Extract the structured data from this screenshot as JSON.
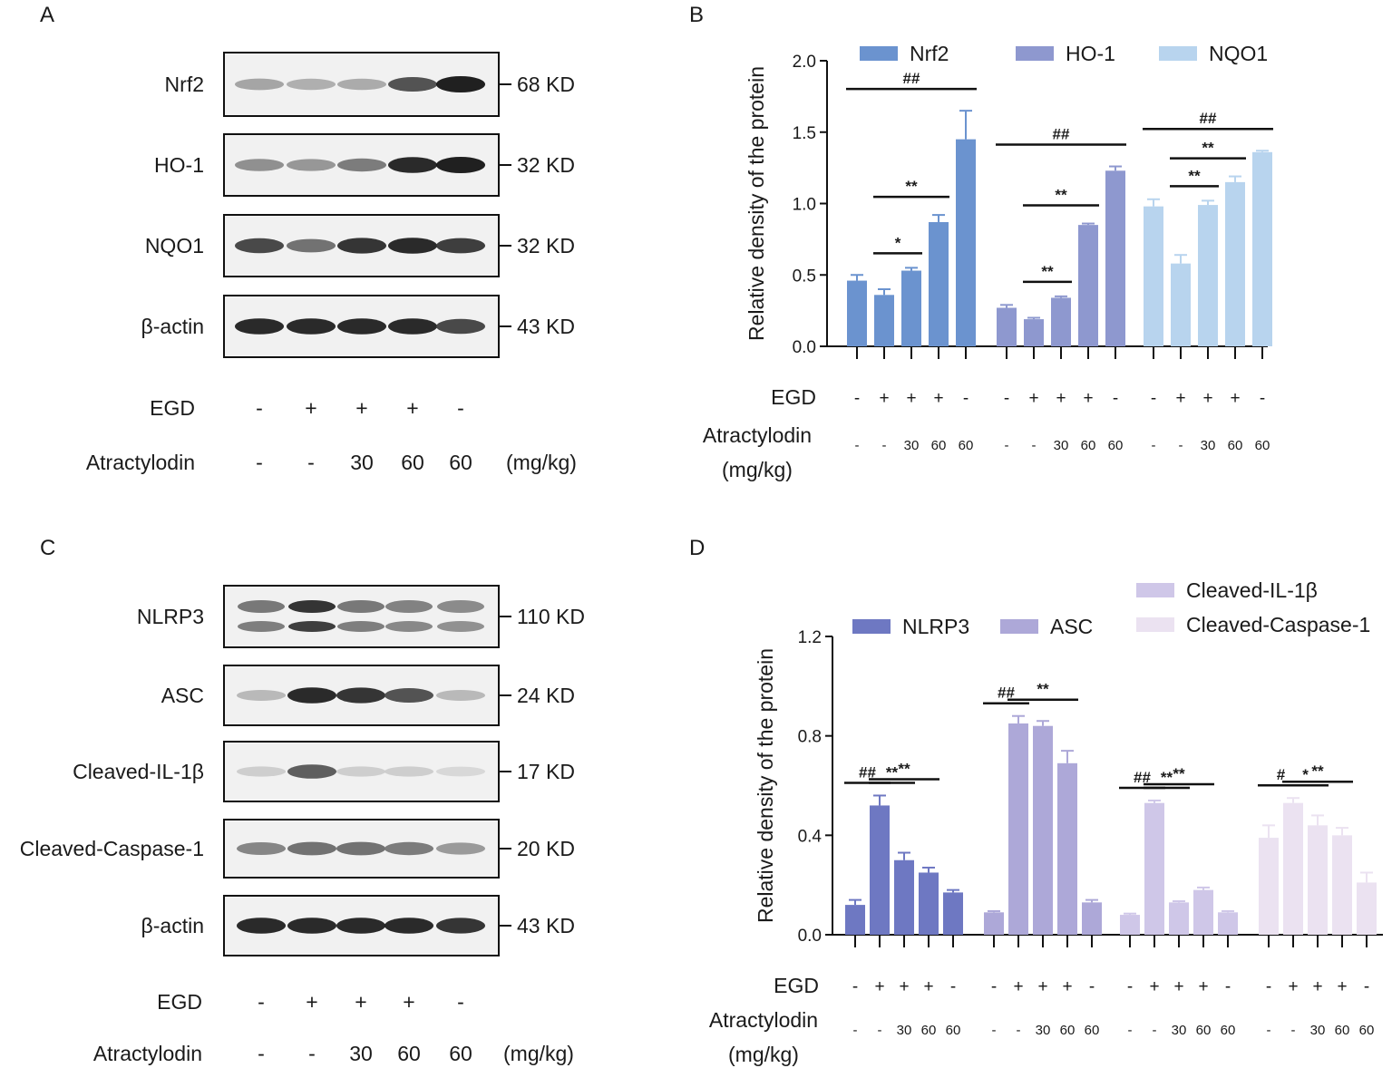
{
  "panels": {
    "a": "A",
    "b": "B",
    "c": "C",
    "d": "D"
  },
  "blot_a": {
    "proteins": [
      {
        "name": "Nrf2",
        "size": "68 KD",
        "intensities": [
          0.35,
          0.3,
          0.32,
          0.75,
          1.0
        ],
        "doublet": false
      },
      {
        "name": "HO-1",
        "size": "32 KD",
        "intensities": [
          0.45,
          0.42,
          0.55,
          0.95,
          1.0
        ],
        "doublet": false
      },
      {
        "name": "NQO1",
        "size": "32 KD",
        "intensities": [
          0.8,
          0.6,
          0.9,
          0.95,
          0.85
        ],
        "doublet": false
      },
      {
        "name": "β-actin",
        "size": "43 KD",
        "intensities": [
          0.95,
          0.95,
          0.95,
          0.95,
          0.8
        ],
        "doublet": false
      }
    ],
    "egd_label": "EGD",
    "egd": [
      "-",
      "+",
      "+",
      "+",
      "-"
    ],
    "drug_label": "Atractylodin",
    "drug": [
      "-",
      "-",
      "30",
      "60",
      "60"
    ],
    "unit": "(mg/kg)"
  },
  "blot_c": {
    "proteins": [
      {
        "name": "NLRP3",
        "size": "110 KD",
        "intensities": [
          0.6,
          0.95,
          0.6,
          0.55,
          0.5
        ],
        "doublet": true
      },
      {
        "name": "ASC",
        "size": "24 KD",
        "intensities": [
          0.25,
          0.95,
          0.9,
          0.75,
          0.25
        ],
        "doublet": false
      },
      {
        "name": "Cleaved-IL-1β",
        "size": "17 KD",
        "intensities": [
          0.15,
          0.7,
          0.15,
          0.15,
          0.1
        ],
        "doublet": false
      },
      {
        "name": "Cleaved-Caspase-1",
        "size": "20 KD",
        "intensities": [
          0.5,
          0.6,
          0.6,
          0.55,
          0.4
        ],
        "doublet": false
      },
      {
        "name": "β-actin",
        "size": "43 KD",
        "intensities": [
          0.95,
          0.95,
          0.95,
          0.95,
          0.9
        ],
        "doublet": false
      }
    ],
    "egd_label": "EGD",
    "egd": [
      "-",
      "+",
      "+",
      "+",
      "-"
    ],
    "drug_label": "Atractylodin",
    "drug": [
      "-",
      "-",
      "30",
      "60",
      "60"
    ],
    "unit": "(mg/kg)"
  },
  "chart_data": [
    {
      "type": "bar",
      "panel": "B",
      "ylabel": "Relative density of the protein",
      "ylim": [
        0,
        2.0
      ],
      "yticks": [
        "0.0",
        "0.5",
        "1.0",
        "1.5",
        "2.0"
      ],
      "egd_label": "EGD",
      "drug_label": "Atractylodin",
      "unit_label": "(mg/kg)",
      "egd": [
        "-",
        "+",
        "+",
        "+",
        "-"
      ],
      "drug": [
        "-",
        "-",
        "30",
        "60",
        "60"
      ],
      "series": [
        {
          "name": "Nrf2",
          "color": "#6b93cf",
          "values": [
            0.46,
            0.36,
            0.53,
            0.87,
            1.45
          ],
          "errors": [
            0.04,
            0.04,
            0.02,
            0.05,
            0.2
          ]
        },
        {
          "name": "HO-1",
          "color": "#8e98cf",
          "values": [
            0.27,
            0.19,
            0.34,
            0.85,
            1.23
          ],
          "errors": [
            0.02,
            0.01,
            0.01,
            0.01,
            0.03
          ]
        },
        {
          "name": "NQO1",
          "color": "#b8d4ee",
          "values": [
            0.98,
            0.58,
            0.99,
            1.15,
            1.36
          ],
          "errors": [
            0.05,
            0.06,
            0.03,
            0.04,
            0.01
          ]
        }
      ],
      "annotations": [
        {
          "group": 0,
          "from": 0,
          "to": 4,
          "label": "##"
        },
        {
          "group": 0,
          "from": 1,
          "to": 2,
          "label": "*"
        },
        {
          "group": 0,
          "from": 1,
          "to": 3,
          "label": "**"
        },
        {
          "group": 1,
          "from": 0,
          "to": 4,
          "label": "##"
        },
        {
          "group": 1,
          "from": 1,
          "to": 2,
          "label": "**"
        },
        {
          "group": 1,
          "from": 1,
          "to": 3,
          "label": "**"
        },
        {
          "group": 2,
          "from": 0,
          "to": 4,
          "label": "##"
        },
        {
          "group": 2,
          "from": 1,
          "to": 2,
          "label": "**"
        },
        {
          "group": 2,
          "from": 1,
          "to": 3,
          "label": "**"
        }
      ]
    },
    {
      "type": "bar",
      "panel": "D",
      "ylabel": "Relative density of the protein",
      "ylim": [
        0,
        1.2
      ],
      "yticks": [
        "0.0",
        "0.4",
        "0.8",
        "1.2"
      ],
      "egd_label": "EGD",
      "drug_label": "Atractylodin",
      "unit_label": "(mg/kg)",
      "egd": [
        "-",
        "+",
        "+",
        "+",
        "-"
      ],
      "drug": [
        "-",
        "-",
        "30",
        "60",
        "60"
      ],
      "series": [
        {
          "name": "NLRP3",
          "color": "#6e78c2",
          "values": [
            0.12,
            0.52,
            0.3,
            0.25,
            0.17
          ],
          "errors": [
            0.02,
            0.04,
            0.03,
            0.02,
            0.01
          ]
        },
        {
          "name": "ASC",
          "color": "#ada8d8",
          "values": [
            0.09,
            0.85,
            0.84,
            0.69,
            0.13
          ],
          "errors": [
            0.005,
            0.03,
            0.02,
            0.05,
            0.01
          ]
        },
        {
          "name": "Cleaved-IL-1β",
          "color": "#cfc7e8",
          "values": [
            0.08,
            0.53,
            0.13,
            0.18,
            0.09
          ],
          "errors": [
            0.005,
            0.01,
            0.005,
            0.01,
            0.005
          ]
        },
        {
          "name": "Cleaved-Caspase-1",
          "color": "#ebe2f1",
          "values": [
            0.39,
            0.53,
            0.44,
            0.4,
            0.21
          ],
          "errors": [
            0.05,
            0.02,
            0.04,
            0.03,
            0.04
          ]
        }
      ],
      "annotations": [
        {
          "group": 0,
          "from": 0,
          "to": 1,
          "label": "##"
        },
        {
          "group": 0,
          "from": 1,
          "to": 2,
          "label": "**"
        },
        {
          "group": 0,
          "from": 1,
          "to": 3,
          "label": "**"
        },
        {
          "group": 1,
          "from": 0,
          "to": 1,
          "label": "##"
        },
        {
          "group": 1,
          "from": 1,
          "to": 3,
          "label": "**"
        },
        {
          "group": 2,
          "from": 0,
          "to": 1,
          "label": "##"
        },
        {
          "group": 2,
          "from": 1,
          "to": 2,
          "label": "**"
        },
        {
          "group": 2,
          "from": 1,
          "to": 3,
          "label": "**"
        },
        {
          "group": 3,
          "from": 0,
          "to": 1,
          "label": "#"
        },
        {
          "group": 3,
          "from": 1,
          "to": 2,
          "label": "*"
        },
        {
          "group": 3,
          "from": 1,
          "to": 3,
          "label": "**"
        }
      ]
    }
  ]
}
